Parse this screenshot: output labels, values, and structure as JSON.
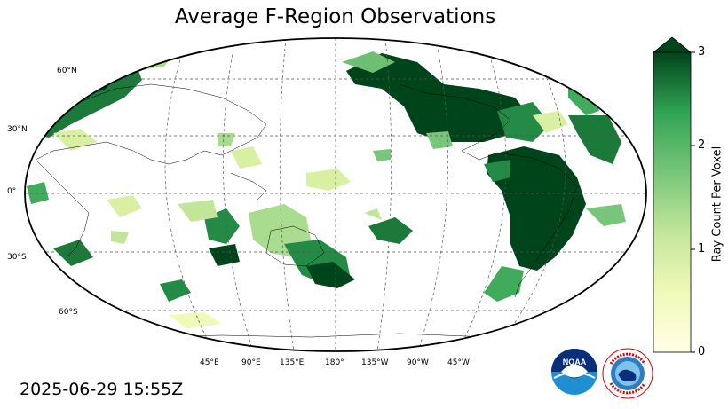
{
  "map": {
    "title": "Average F-Region Observations",
    "timestamp": "2025-06-29 15:55Z",
    "projection": "Robinson, Pacific-centered (central meridian 180°)",
    "lat_labels": [
      "60°N",
      "30°N",
      "0°",
      "30°S",
      "60°S"
    ],
    "lon_labels": [
      "45°E",
      "90°E",
      "135°E",
      "180°",
      "135°W",
      "90°W",
      "45°W"
    ],
    "colorbar": {
      "label": "Ray Count Per Voxel",
      "ticks": [
        "0",
        "1",
        "2",
        "3"
      ],
      "min": 0,
      "max": 3,
      "extend": "max",
      "colors": {
        "low": "#ffffe5",
        "mid": "#8cca87",
        "high": "#00441b"
      }
    }
  },
  "logos": [
    {
      "name": "noaa-logo",
      "text": "NOAA"
    },
    {
      "name": "nws-logo",
      "text": "NATIONAL WEATHER SERVICE"
    }
  ]
}
